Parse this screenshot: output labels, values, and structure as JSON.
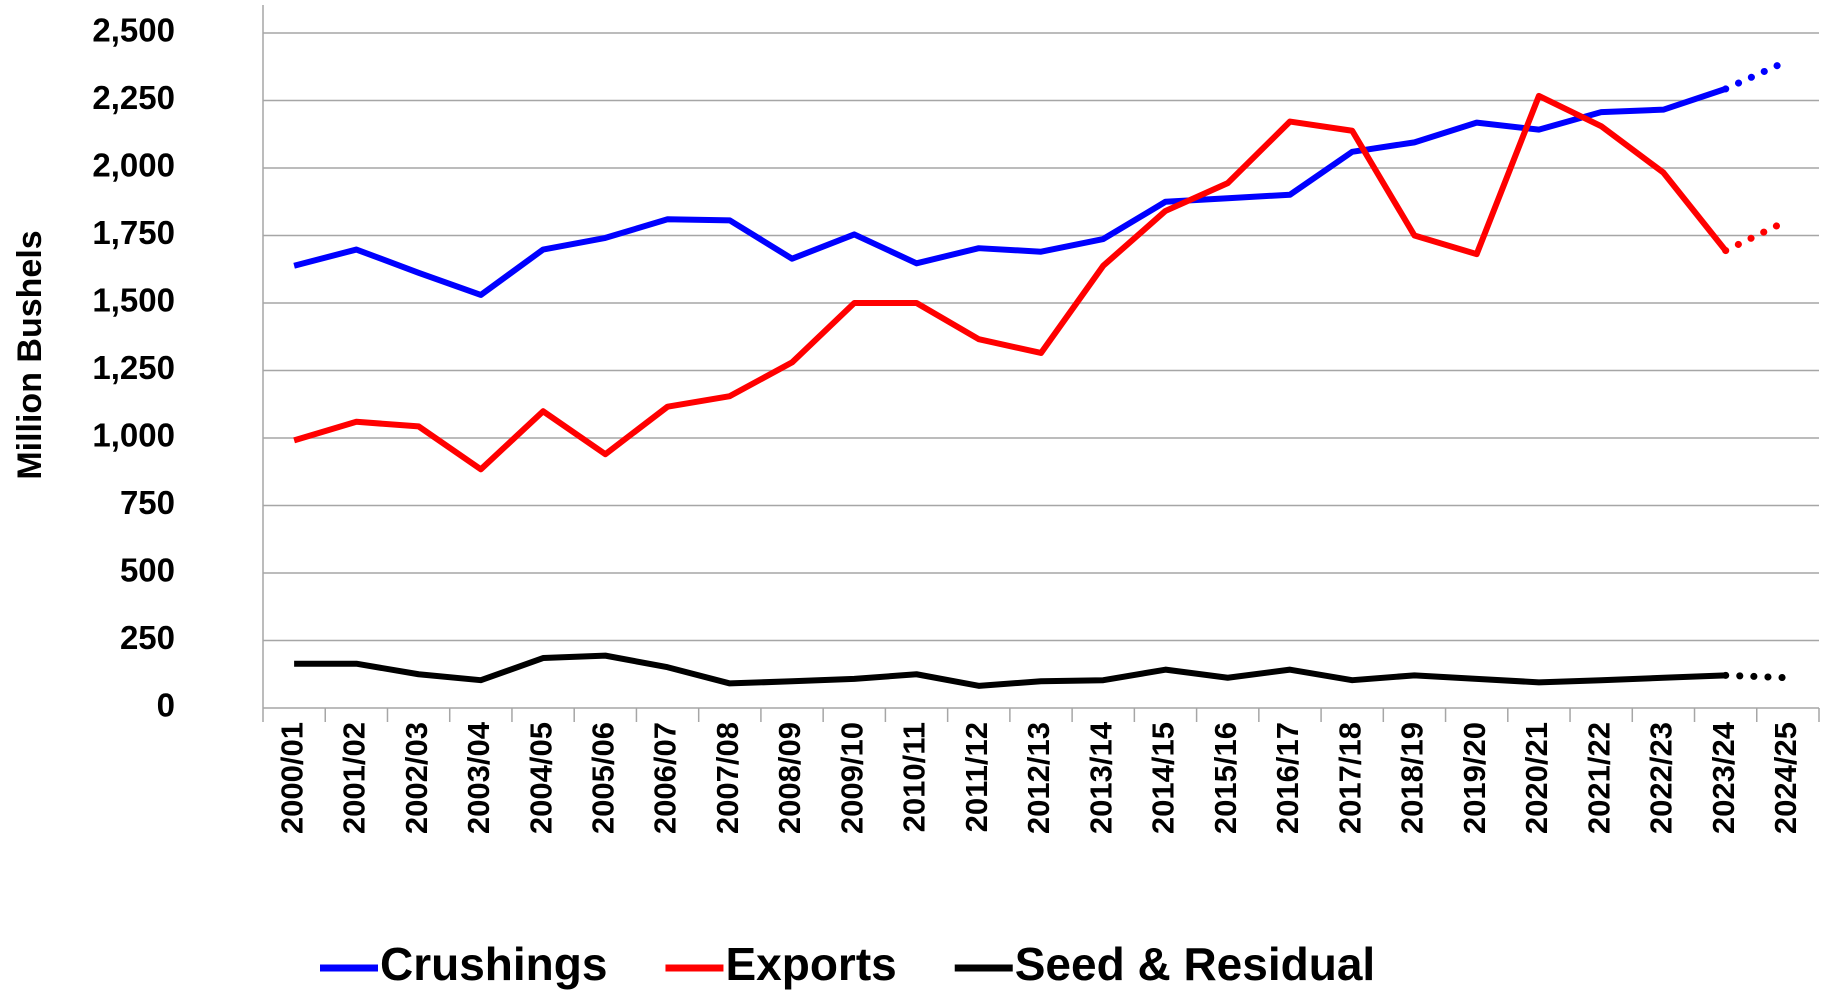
{
  "chart_data": {
    "type": "line",
    "y_label": "Million Bushels",
    "categories": [
      "2000/01",
      "2001/02",
      "2002/03",
      "2003/04",
      "2004/05",
      "2005/06",
      "2006/07",
      "2007/08",
      "2008/09",
      "2009/10",
      "2010/11",
      "2011/12",
      "2012/13",
      "2013/14",
      "2014/15",
      "2015/16",
      "2016/17",
      "2017/18",
      "2018/19",
      "2019/20",
      "2020/21",
      "2021/22",
      "2022/23",
      "2023/24",
      "2024/25"
    ],
    "series": [
      {
        "name": "Crushings",
        "color": "#0000ff",
        "values": [
          1638,
          1698,
          1612,
          1530,
          1698,
          1741,
          1810,
          1806,
          1664,
          1754,
          1647,
          1703,
          1690,
          1737,
          1875,
          1888,
          1901,
          2060,
          2095,
          2168,
          2142,
          2207,
          2216,
          2293,
          2397
        ]
      },
      {
        "name": "Exports",
        "color": "#ff0000",
        "values": [
          991,
          1060,
          1043,
          884,
          1099,
          940,
          1116,
          1155,
          1280,
          1500,
          1500,
          1366,
          1315,
          1638,
          1841,
          1944,
          2172,
          2138,
          1750,
          1681,
          2267,
          2155,
          1983,
          1694,
          1806
        ]
      },
      {
        "name": "Seed & Residual",
        "color": "#000000",
        "values": [
          164,
          164,
          125,
          103,
          185,
          194,
          151,
          91,
          99,
          108,
          125,
          82,
          99,
          103,
          142,
          112,
          142,
          103,
          121,
          108,
          95,
          103,
          112,
          121,
          112
        ]
      }
    ],
    "projection_start": 23,
    "ylim": [
      0,
      2500
    ],
    "yticks": [
      0,
      250,
      500,
      750,
      {
        "value": 1000,
        "label": "1,000"
      },
      {
        "value": 1250,
        "label": "1,250"
      },
      {
        "value": 1500,
        "label": "1,500"
      },
      {
        "value": 1750,
        "label": "1,750"
      },
      {
        "value": 2000,
        "label": "2,000"
      },
      {
        "value": 2250,
        "label": "2,250"
      },
      {
        "value": 2500,
        "label": "2,500"
      }
    ],
    "grid": true,
    "legend": "bottom"
  }
}
